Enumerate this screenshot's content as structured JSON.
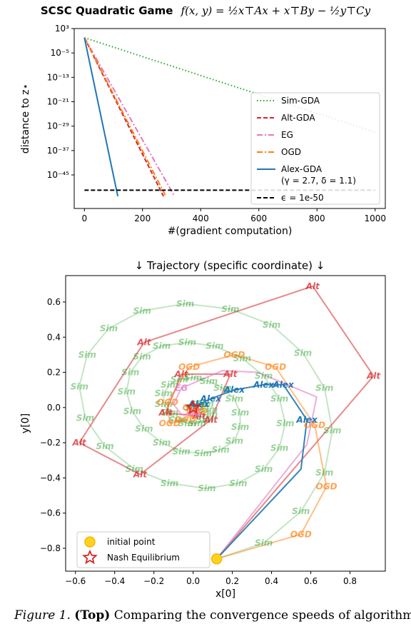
{
  "figure": {
    "top_title_text": "SCSC Quadratic Game",
    "top_title_formula": "f(x, y) = ½x⊤Ax + x⊤By − ½y⊤Cy",
    "bottom_title": "↓ Trajectory (specific coordinate) ↓",
    "caption_label": "Figure 1.",
    "caption_bold": "(Top)",
    "caption_text": "Comparing the convergence speeds of algorithm"
  },
  "chart_data": [
    {
      "type": "line",
      "title": "SCSC Quadratic Game f(x, y) = ½x⊤Ax + x⊤By − ½y⊤Cy",
      "xlabel": "#(gradient computation)",
      "ylabel": "distance to z⋆",
      "xlim": [
        -35,
        1035
      ],
      "ylog10lim": [
        -56,
        3
      ],
      "xticks": [
        0,
        200,
        400,
        600,
        800,
        1000
      ],
      "yticks_log10": [
        3,
        -5,
        -13,
        -21,
        -29,
        -37,
        -45
      ],
      "ytick_labels": [
        "10³",
        "10⁻⁵",
        "10⁻¹³",
        "10⁻²¹",
        "10⁻²⁹",
        "10⁻³⁷",
        "10⁻⁴⁵"
      ],
      "grid": false,
      "legend_position": "right",
      "series": [
        {
          "name": "Sim-GDA",
          "color": "#2ca02c",
          "dash": "1.5,3",
          "x": [
            0,
            1000
          ],
          "log10y": [
            0,
            -31
          ]
        },
        {
          "name": "Alt-GDA",
          "color": "#d62728",
          "dash": "6,3",
          "x": [
            0,
            272
          ],
          "log10y": [
            0,
            -52
          ]
        },
        {
          "name": "EG",
          "color": "#e377c2",
          "dash": "8,3,2,3",
          "x": [
            0,
            310
          ],
          "log10y": [
            0,
            -52
          ]
        },
        {
          "name": "OGD",
          "color": "#ff7f0e",
          "dash": "8,3,2,3",
          "x": [
            0,
            280
          ],
          "log10y": [
            0,
            -52
          ]
        },
        {
          "name": "Alex-GDA",
          "legend_extra": "(γ = 2.7, δ = 1.1)",
          "color": "#1f77b4",
          "dash": "",
          "x": [
            0,
            115
          ],
          "log10y": [
            0,
            -52
          ]
        },
        {
          "name": "ϵ = 1e-50",
          "color": "#000000",
          "dash": "6,3",
          "x": [
            0,
            1000
          ],
          "log10y": [
            -50,
            -50
          ]
        }
      ]
    },
    {
      "type": "line",
      "title": "↓ Trajectory (specific coordinate) ↓",
      "xlabel": "x[0]",
      "ylabel": "y[0]",
      "xlim": [
        -0.65,
        0.98
      ],
      "ylim": [
        -0.93,
        0.75
      ],
      "xticks": [
        -0.6,
        -0.4,
        -0.2,
        0.0,
        0.2,
        0.4,
        0.6,
        0.8
      ],
      "xtick_labels": [
        "−0.6",
        "−0.4",
        "−0.2",
        "0.0",
        "0.2",
        "0.4",
        "0.6",
        "0.8"
      ],
      "yticks": [
        -0.8,
        -0.6,
        -0.4,
        -0.2,
        0.0,
        0.2,
        0.4,
        0.6
      ],
      "ytick_labels": [
        "−0.8",
        "−0.6",
        "−0.4",
        "−0.2",
        "0.0",
        "0.2",
        "0.4",
        "0.6"
      ],
      "grid": false,
      "legend_position": "lower-left",
      "legend": [
        {
          "label": "initial point",
          "marker": "circle",
          "color": "#ffd21f"
        },
        {
          "label": "Nash Equilibrium",
          "marker": "star",
          "color": "#d62728"
        }
      ],
      "initial_point": [
        0.12,
        -0.86
      ],
      "equilibrium": [
        0.0,
        0.0
      ],
      "series": [
        {
          "name": "Sim",
          "color": "#2ca02c",
          "opacity": 0.28,
          "marker_label": "Sim",
          "x": [
            0.12,
            0.36,
            0.55,
            0.67,
            0.71,
            0.67,
            0.56,
            0.4,
            0.19,
            -0.04,
            -0.26,
            -0.43,
            -0.54,
            -0.58,
            -0.55,
            -0.45,
            -0.3,
            -0.12,
            0.07,
            0.23,
            0.36,
            0.44,
            0.47,
            0.44,
            0.36,
            0.25,
            0.11,
            -0.03,
            -0.16,
            -0.26,
            -0.32,
            -0.34,
            -0.31,
            -0.25,
            -0.16,
            -0.06,
            0.05,
            0.14,
            0.21,
            0.24,
            0.24,
            0.21,
            0.15,
            0.08,
            0.0,
            -0.07,
            -0.12,
            -0.15,
            -0.15,
            -0.12,
            -0.08,
            -0.03,
            0.02,
            0.06,
            0.08,
            0.08,
            0.06,
            0.03,
            0.0
          ],
          "y": [
            -0.86,
            -0.77,
            -0.59,
            -0.37,
            -0.13,
            0.11,
            0.31,
            0.47,
            0.56,
            0.59,
            0.55,
            0.45,
            0.3,
            0.12,
            -0.06,
            -0.22,
            -0.35,
            -0.43,
            -0.46,
            -0.43,
            -0.35,
            -0.23,
            -0.09,
            0.05,
            0.18,
            0.28,
            0.35,
            0.37,
            0.35,
            0.29,
            0.2,
            0.09,
            -0.02,
            -0.12,
            -0.2,
            -0.25,
            -0.26,
            -0.24,
            -0.19,
            -0.11,
            -0.03,
            0.05,
            0.11,
            0.15,
            0.17,
            0.16,
            0.13,
            0.08,
            0.02,
            -0.03,
            -0.07,
            -0.09,
            -0.09,
            -0.07,
            -0.04,
            -0.01,
            0.02,
            0.02,
            0.0
          ]
        },
        {
          "name": "Alt",
          "color": "#d62728",
          "opacity": 0.55,
          "marker_label": "Alt",
          "x": [
            0.12,
            0.92,
            0.61,
            -0.25,
            -0.58,
            -0.27,
            0.09,
            0.19,
            -0.06,
            -0.14,
            0.03,
            0.0
          ],
          "y": [
            -0.86,
            0.18,
            0.69,
            0.37,
            -0.2,
            -0.38,
            -0.07,
            0.19,
            0.19,
            -0.03,
            -0.05,
            0.0
          ]
        },
        {
          "name": "OGD",
          "color": "#ff7f0e",
          "opacity": 0.5,
          "marker_label": "OGD",
          "x": [
            0.12,
            0.55,
            0.68,
            0.62,
            0.42,
            0.21,
            -0.02,
            -0.13,
            -0.12,
            -0.04,
            0.02,
            0.0
          ],
          "y": [
            -0.86,
            -0.72,
            -0.45,
            -0.1,
            0.23,
            0.3,
            0.23,
            0.03,
            -0.09,
            -0.07,
            -0.02,
            0.0
          ]
        },
        {
          "name": "EG",
          "color": "#e377c2",
          "opacity": 0.6,
          "marker_label": "EG",
          "x": [
            0.12,
            0.58,
            0.63,
            0.33,
            0.15,
            -0.06,
            -0.1,
            -0.06,
            0.01,
            0.0
          ],
          "y": [
            -0.86,
            -0.21,
            0.06,
            0.2,
            0.21,
            0.11,
            0.02,
            -0.04,
            -0.03,
            0.0
          ],
          "marker_index": [
            5,
            8
          ]
        },
        {
          "name": "Alex",
          "color": "#1f77b4",
          "opacity": 0.9,
          "marker_label": "Alex",
          "x": [
            0.12,
            0.55,
            0.58,
            0.46,
            0.36,
            0.21,
            0.09,
            0.03,
            0.0
          ],
          "y": [
            -0.86,
            -0.35,
            -0.07,
            0.13,
            0.13,
            0.1,
            0.05,
            0.02,
            0.0
          ],
          "marker_index": [
            2,
            3,
            4,
            5,
            6,
            7
          ]
        }
      ]
    }
  ]
}
